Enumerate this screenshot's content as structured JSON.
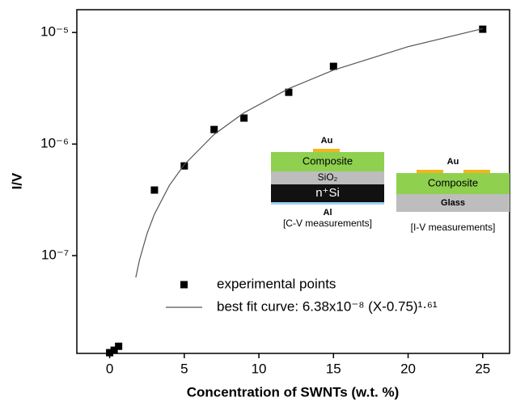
{
  "chart_data": {
    "type": "scatter",
    "xlabel": "Concentration of SWNTs (w.t. %)",
    "ylabel": "I/V",
    "xlim": [
      -2.2,
      26.8
    ],
    "xticks": [
      0,
      5,
      10,
      15,
      20,
      25
    ],
    "ylim": [
      1.33e-08,
      1.6e-05
    ],
    "ylog": true,
    "yticks": [
      {
        "value": 1e-07,
        "label": "10⁻⁷"
      },
      {
        "value": 1e-06,
        "label": "10⁻⁶"
      },
      {
        "value": 1e-05,
        "label": "10⁻⁵"
      }
    ],
    "series": [
      {
        "name": "experimental points",
        "style": "markers",
        "color": "#000000",
        "x": [
          0,
          0.3,
          0.6,
          3,
          5,
          7,
          9,
          12,
          15,
          25
        ],
        "values": [
          1.35e-08,
          1.42e-08,
          1.54e-08,
          3.87e-07,
          6.37e-07,
          1.35e-06,
          1.71e-06,
          2.91e-06,
          4.97e-06,
          1.07e-05
        ]
      },
      {
        "name": "best fit curve: 6.38x10⁻⁸ (X-0.75)¹·⁶¹",
        "style": "line",
        "color": "#555555",
        "x": [
          1.75,
          2,
          2.5,
          3,
          4,
          5,
          7,
          9,
          12,
          15,
          20,
          25
        ],
        "values": [
          6.38e-08,
          9.14e-08,
          1.571e-07,
          2.354e-07,
          4.256e-07,
          6.55e-07,
          1.22e-06,
          1.906e-06,
          3.142e-06,
          4.598e-06,
          7.46e-06,
          1.082e-05
        ]
      }
    ],
    "insets": [
      {
        "labels": [
          "Au",
          "Composite",
          "SiO₂",
          "n⁺Si",
          "Al",
          "[C-V measurements]"
        ]
      },
      {
        "labels": [
          "Au",
          "Composite",
          "Glass",
          "[I-V measurements]"
        ]
      }
    ]
  }
}
